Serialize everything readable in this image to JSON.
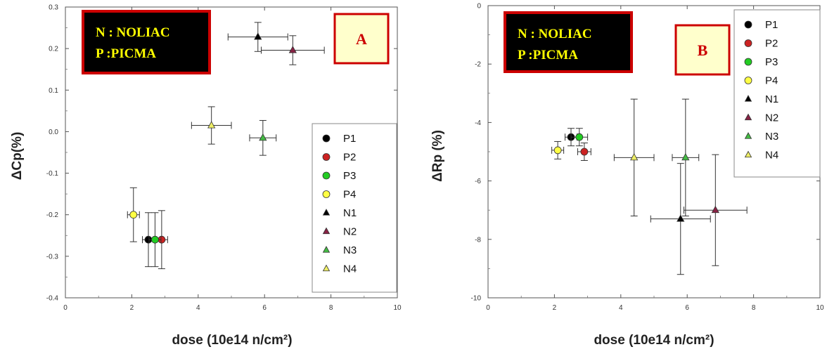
{
  "chart_data": [
    {
      "panel": "A",
      "type": "scatter",
      "xlabel": "dose (10e14 n/cm²)",
      "ylabel": "ΔCp(%)",
      "xlim": [
        0,
        10
      ],
      "ylim": [
        -0.4,
        0.3
      ],
      "xticks": [
        "0",
        "2",
        "4",
        "6",
        "8",
        "10"
      ],
      "yticks": [
        "-0.4",
        "-0.3",
        "-0.2",
        "-0.1",
        "0.0",
        "0.1",
        "0.2",
        "0.3"
      ],
      "grid": false,
      "legend_position": "right",
      "series": [
        {
          "name": "P1",
          "color": "#000000",
          "marker": "circle",
          "points": [
            {
              "x": 2.5,
              "y": -0.26,
              "xerr": 0.18,
              "yerr": 0.065
            }
          ]
        },
        {
          "name": "P2",
          "color": "#cc2222",
          "marker": "circle",
          "points": [
            {
              "x": 2.9,
              "y": -0.26,
              "xerr": 0.18,
              "yerr": 0.07
            }
          ]
        },
        {
          "name": "P3",
          "color": "#22cc22",
          "marker": "circle",
          "points": [
            {
              "x": 2.7,
              "y": -0.26,
              "xerr": 0.18,
              "yerr": 0.065
            }
          ]
        },
        {
          "name": "P4",
          "color": "#ffff44",
          "marker": "circle",
          "points": [
            {
              "x": 2.05,
              "y": -0.2,
              "xerr": 0.18,
              "yerr": 0.065
            }
          ]
        },
        {
          "name": "N1",
          "color": "#000000",
          "marker": "triangle",
          "points": [
            {
              "x": 5.8,
              "y": 0.228,
              "xerr": 0.9,
              "yerr": 0.035
            }
          ]
        },
        {
          "name": "N2",
          "color": "#882244",
          "marker": "triangle",
          "points": [
            {
              "x": 6.85,
              "y": 0.196,
              "xerr": 0.95,
              "yerr": 0.035
            }
          ]
        },
        {
          "name": "N3",
          "color": "#44bb44",
          "marker": "triangle",
          "points": [
            {
              "x": 5.95,
              "y": -0.015,
              "xerr": 0.4,
              "yerr": 0.042
            }
          ]
        },
        {
          "name": "N4",
          "color": "#eeee66",
          "marker": "triangle",
          "points": [
            {
              "x": 4.4,
              "y": 0.015,
              "xerr": 0.6,
              "yerr": 0.045
            }
          ]
        }
      ],
      "annotations": {
        "note_line1": "N : NOLIAC",
        "note_line2": "P :PICMA",
        "panel_label": "A"
      }
    },
    {
      "panel": "B",
      "type": "scatter",
      "xlabel": "dose (10e14 n/cm²)",
      "ylabel": "ΔRp (%)",
      "xlim": [
        0,
        10
      ],
      "ylim": [
        -10,
        0
      ],
      "xticks": [
        "0",
        "2",
        "4",
        "6",
        "8",
        "10"
      ],
      "yticks": [
        "-10",
        "-8",
        "-6",
        "-4",
        "-2",
        "0"
      ],
      "grid": false,
      "legend_position": "top-right",
      "series": [
        {
          "name": "P1",
          "color": "#000000",
          "marker": "circle",
          "points": [
            {
              "x": 2.5,
              "y": -4.5,
              "xerr": 0.18,
              "yerr": 0.3
            }
          ]
        },
        {
          "name": "P2",
          "color": "#cc2222",
          "marker": "circle",
          "points": [
            {
              "x": 2.9,
              "y": -5.0,
              "xerr": 0.2,
              "yerr": 0.3
            }
          ]
        },
        {
          "name": "P3",
          "color": "#22cc22",
          "marker": "circle",
          "points": [
            {
              "x": 2.75,
              "y": -4.5,
              "xerr": 0.25,
              "yerr": 0.3
            }
          ]
        },
        {
          "name": "P4",
          "color": "#ffff44",
          "marker": "circle",
          "points": [
            {
              "x": 2.1,
              "y": -4.95,
              "xerr": 0.18,
              "yerr": 0.3
            }
          ]
        },
        {
          "name": "N1",
          "color": "#000000",
          "marker": "triangle",
          "points": [
            {
              "x": 5.8,
              "y": -7.3,
              "xerr": 0.9,
              "yerr": 1.9
            }
          ]
        },
        {
          "name": "N2",
          "color": "#882244",
          "marker": "triangle",
          "points": [
            {
              "x": 6.85,
              "y": -7.0,
              "xerr": 0.95,
              "yerr": 1.9
            }
          ]
        },
        {
          "name": "N3",
          "color": "#44bb44",
          "marker": "triangle",
          "points": [
            {
              "x": 5.95,
              "y": -5.2,
              "xerr": 0.4,
              "yerr": 2.0
            }
          ]
        },
        {
          "name": "N4",
          "color": "#eeee66",
          "marker": "triangle",
          "points": [
            {
              "x": 4.4,
              "y": -5.2,
              "xerr": 0.6,
              "yerr": 2.0
            }
          ]
        }
      ],
      "annotations": {
        "note_line1": "N : NOLIAC",
        "note_line2": "P :PICMA",
        "panel_label": "B"
      }
    }
  ]
}
